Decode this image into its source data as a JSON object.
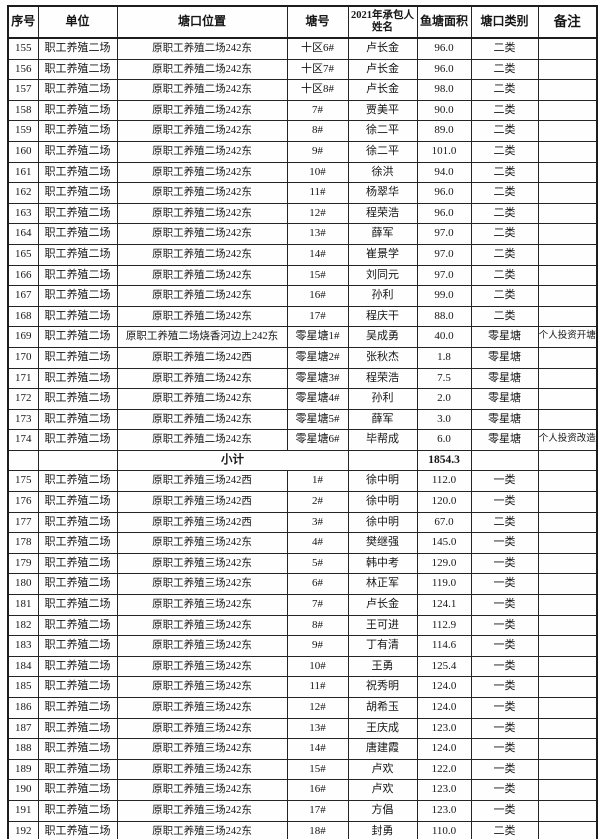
{
  "colors": {
    "background": "#fefefe",
    "border": "#242424",
    "text": "#161616"
  },
  "table": {
    "headers": {
      "seq": "序号",
      "unit": "单位",
      "location": "塘口位置",
      "pond": "塘号",
      "name": "2021年承包人姓名",
      "area": "鱼塘面积",
      "category": "塘口类别",
      "note": "备注"
    },
    "subtotal": {
      "label": "小计",
      "area": "1854.3"
    },
    "rows": [
      {
        "seq": "155",
        "unit": "职工养殖二场",
        "location": "原职工养殖二场242东",
        "pond": "十区6#",
        "name": "卢长金",
        "area": "96.0",
        "category": "二类",
        "note": ""
      },
      {
        "seq": "156",
        "unit": "职工养殖二场",
        "location": "原职工养殖二场242东",
        "pond": "十区7#",
        "name": "卢长金",
        "area": "96.0",
        "category": "二类",
        "note": ""
      },
      {
        "seq": "157",
        "unit": "职工养殖二场",
        "location": "原职工养殖二场242东",
        "pond": "十区8#",
        "name": "卢长金",
        "area": "98.0",
        "category": "二类",
        "note": ""
      },
      {
        "seq": "158",
        "unit": "职工养殖二场",
        "location": "原职工养殖二场242东",
        "pond": "7#",
        "name": "贾美平",
        "area": "90.0",
        "category": "二类",
        "note": ""
      },
      {
        "seq": "159",
        "unit": "职工养殖二场",
        "location": "原职工养殖二场242东",
        "pond": "8#",
        "name": "徐二平",
        "area": "89.0",
        "category": "二类",
        "note": ""
      },
      {
        "seq": "160",
        "unit": "职工养殖二场",
        "location": "原职工养殖二场242东",
        "pond": "9#",
        "name": "徐二平",
        "area": "101.0",
        "category": "二类",
        "note": ""
      },
      {
        "seq": "161",
        "unit": "职工养殖二场",
        "location": "原职工养殖二场242东",
        "pond": "10#",
        "name": "徐洪",
        "area": "94.0",
        "category": "二类",
        "note": ""
      },
      {
        "seq": "162",
        "unit": "职工养殖二场",
        "location": "原职工养殖二场242东",
        "pond": "11#",
        "name": "杨翠华",
        "area": "96.0",
        "category": "二类",
        "note": ""
      },
      {
        "seq": "163",
        "unit": "职工养殖二场",
        "location": "原职工养殖二场242东",
        "pond": "12#",
        "name": "程荣浩",
        "area": "96.0",
        "category": "二类",
        "note": ""
      },
      {
        "seq": "164",
        "unit": "职工养殖二场",
        "location": "原职工养殖二场242东",
        "pond": "13#",
        "name": "薛军",
        "area": "97.0",
        "category": "二类",
        "note": ""
      },
      {
        "seq": "165",
        "unit": "职工养殖二场",
        "location": "原职工养殖二场242东",
        "pond": "14#",
        "name": "崔景学",
        "area": "97.0",
        "category": "二类",
        "note": ""
      },
      {
        "seq": "166",
        "unit": "职工养殖二场",
        "location": "原职工养殖二场242东",
        "pond": "15#",
        "name": "刘同元",
        "area": "97.0",
        "category": "二类",
        "note": ""
      },
      {
        "seq": "167",
        "unit": "职工养殖二场",
        "location": "原职工养殖二场242东",
        "pond": "16#",
        "name": "孙利",
        "area": "99.0",
        "category": "二类",
        "note": ""
      },
      {
        "seq": "168",
        "unit": "职工养殖二场",
        "location": "原职工养殖二场242东",
        "pond": "17#",
        "name": "程庆干",
        "area": "88.0",
        "category": "二类",
        "note": ""
      },
      {
        "seq": "169",
        "unit": "职工养殖二场",
        "location": "原职工养殖二场烧香河边上242东",
        "pond": "零星塘1#",
        "name": "吴成勇",
        "area": "40.0",
        "category": "零星塘",
        "note": "个人投资开塘"
      },
      {
        "seq": "170",
        "unit": "职工养殖二场",
        "location": "原职工养殖二场242西",
        "pond": "零星塘2#",
        "name": "张秋杰",
        "area": "1.8",
        "category": "零星塘",
        "note": ""
      },
      {
        "seq": "171",
        "unit": "职工养殖二场",
        "location": "原职工养殖二场242东",
        "pond": "零星塘3#",
        "name": "程荣浩",
        "area": "7.5",
        "category": "零星塘",
        "note": ""
      },
      {
        "seq": "172",
        "unit": "职工养殖二场",
        "location": "原职工养殖二场242东",
        "pond": "零星塘4#",
        "name": "孙利",
        "area": "2.0",
        "category": "零星塘",
        "note": ""
      },
      {
        "seq": "173",
        "unit": "职工养殖二场",
        "location": "原职工养殖二场242东",
        "pond": "零星塘5#",
        "name": "薛军",
        "area": "3.0",
        "category": "零星塘",
        "note": ""
      },
      {
        "seq": "174",
        "unit": "职工养殖二场",
        "location": "原职工养殖二场242东",
        "pond": "零星塘6#",
        "name": "毕帮成",
        "area": "6.0",
        "category": "零星塘",
        "note": "个人投资改造"
      },
      {
        "type": "subtotal"
      },
      {
        "seq": "175",
        "unit": "职工养殖二场",
        "location": "原职工养殖三场242西",
        "pond": "1#",
        "name": "徐中明",
        "area": "112.0",
        "category": "一类",
        "note": ""
      },
      {
        "seq": "176",
        "unit": "职工养殖二场",
        "location": "原职工养殖三场242西",
        "pond": "2#",
        "name": "徐中明",
        "area": "120.0",
        "category": "一类",
        "note": ""
      },
      {
        "seq": "177",
        "unit": "职工养殖二场",
        "location": "原职工养殖三场242西",
        "pond": "3#",
        "name": "徐中明",
        "area": "67.0",
        "category": "二类",
        "note": ""
      },
      {
        "seq": "178",
        "unit": "职工养殖二场",
        "location": "原职工养殖三场242东",
        "pond": "4#",
        "name": "樊继强",
        "area": "145.0",
        "category": "一类",
        "note": ""
      },
      {
        "seq": "179",
        "unit": "职工养殖二场",
        "location": "原职工养殖三场242东",
        "pond": "5#",
        "name": "韩中考",
        "area": "129.0",
        "category": "一类",
        "note": ""
      },
      {
        "seq": "180",
        "unit": "职工养殖二场",
        "location": "原职工养殖三场242东",
        "pond": "6#",
        "name": "林正军",
        "area": "119.0",
        "category": "一类",
        "note": ""
      },
      {
        "seq": "181",
        "unit": "职工养殖二场",
        "location": "原职工养殖三场242东",
        "pond": "7#",
        "name": "卢长金",
        "area": "124.1",
        "category": "一类",
        "note": ""
      },
      {
        "seq": "182",
        "unit": "职工养殖二场",
        "location": "原职工养殖三场242东",
        "pond": "8#",
        "name": "王可进",
        "area": "112.9",
        "category": "一类",
        "note": ""
      },
      {
        "seq": "183",
        "unit": "职工养殖二场",
        "location": "原职工养殖三场242东",
        "pond": "9#",
        "name": "丁有清",
        "area": "114.6",
        "category": "一类",
        "note": ""
      },
      {
        "seq": "184",
        "unit": "职工养殖二场",
        "location": "原职工养殖三场242东",
        "pond": "10#",
        "name": "王勇",
        "area": "125.4",
        "category": "一类",
        "note": ""
      },
      {
        "seq": "185",
        "unit": "职工养殖二场",
        "location": "原职工养殖三场242东",
        "pond": "11#",
        "name": "祝秀明",
        "area": "124.0",
        "category": "一类",
        "note": ""
      },
      {
        "seq": "186",
        "unit": "职工养殖二场",
        "location": "原职工养殖三场242东",
        "pond": "12#",
        "name": "胡希玉",
        "area": "124.0",
        "category": "一类",
        "note": ""
      },
      {
        "seq": "187",
        "unit": "职工养殖二场",
        "location": "原职工养殖三场242东",
        "pond": "13#",
        "name": "王庆成",
        "area": "123.0",
        "category": "一类",
        "note": ""
      },
      {
        "seq": "188",
        "unit": "职工养殖二场",
        "location": "原职工养殖三场242东",
        "pond": "14#",
        "name": "唐建霞",
        "area": "124.0",
        "category": "一类",
        "note": ""
      },
      {
        "seq": "189",
        "unit": "职工养殖二场",
        "location": "原职工养殖三场242东",
        "pond": "15#",
        "name": "卢欢",
        "area": "122.0",
        "category": "一类",
        "note": ""
      },
      {
        "seq": "190",
        "unit": "职工养殖二场",
        "location": "原职工养殖三场242东",
        "pond": "16#",
        "name": "卢欢",
        "area": "123.0",
        "category": "一类",
        "note": ""
      },
      {
        "seq": "191",
        "unit": "职工养殖二场",
        "location": "原职工养殖三场242东",
        "pond": "17#",
        "name": "方倡",
        "area": "123.0",
        "category": "一类",
        "note": ""
      },
      {
        "seq": "192",
        "unit": "职工养殖二场",
        "location": "原职工养殖三场242东",
        "pond": "18#",
        "name": "封勇",
        "area": "110.0",
        "category": "二类",
        "note": ""
      }
    ]
  }
}
